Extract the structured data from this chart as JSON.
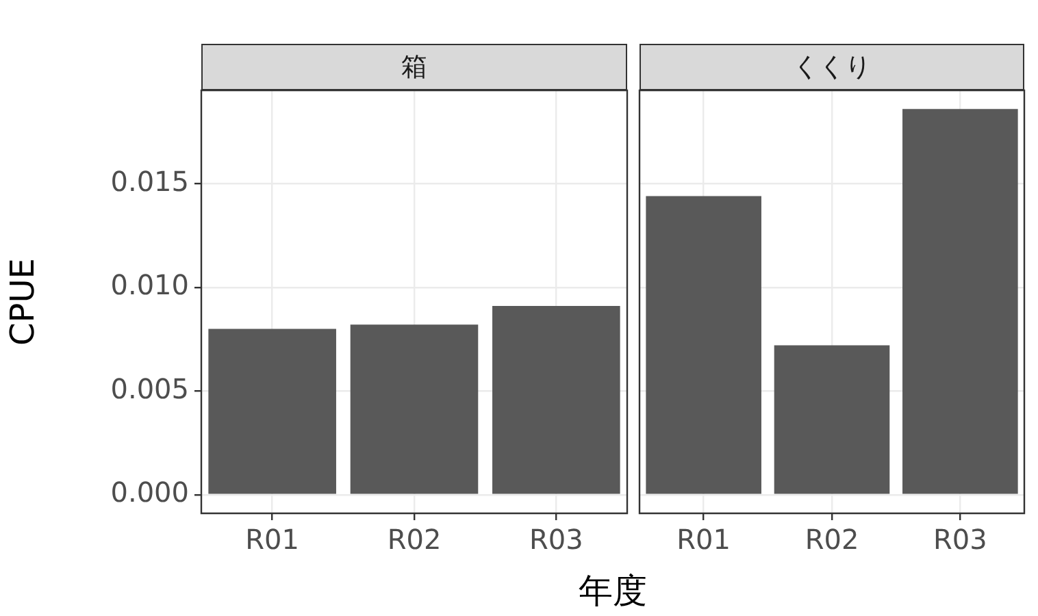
{
  "chart_data": [
    {
      "type": "bar",
      "title": "箱",
      "ylabel": "CPUE",
      "xlabel": "年度",
      "categories": [
        "R01",
        "R02",
        "R03"
      ],
      "values": [
        0.008,
        0.0082,
        0.0091
      ],
      "color": "#595959",
      "ylim": [
        -0.0009,
        0.0195
      ],
      "yticks": [
        {
          "value": 0,
          "label": "0.000"
        },
        {
          "value": 0.005,
          "label": "0.005"
        },
        {
          "value": 0.01,
          "label": "0.010"
        },
        {
          "value": 0.015,
          "label": "0.015"
        }
      ],
      "grid": true
    },
    {
      "type": "bar",
      "title": "くくり",
      "categories": [
        "R01",
        "R02",
        "R03"
      ],
      "values": [
        0.0144,
        0.0072,
        0.0186
      ],
      "color": "#595959",
      "ylim": [
        -0.0009,
        0.0195
      ],
      "yticks": [
        0,
        0.005,
        0.01,
        0.015
      ],
      "grid": true,
      "tick_labels": "x"
    }
  ]
}
